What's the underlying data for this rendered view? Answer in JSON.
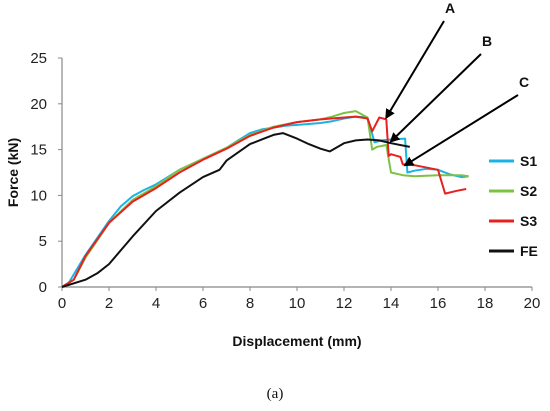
{
  "caption": "(a)",
  "chart_data": {
    "type": "line",
    "title": "",
    "xlabel": "Displacement (mm)",
    "ylabel": "Force (kN)",
    "xlim": [
      0,
      20
    ],
    "ylim": [
      0,
      25
    ],
    "x_ticks": [
      0,
      2,
      4,
      6,
      8,
      10,
      12,
      14,
      16,
      18,
      20
    ],
    "y_ticks": [
      0,
      5,
      10,
      15,
      20,
      25
    ],
    "grid": false,
    "legend_position": "right",
    "series": [
      {
        "name": "S1",
        "color": "#1ab3e6",
        "x": [
          0,
          0.3,
          1,
          2,
          2.5,
          3,
          3.5,
          4,
          5,
          6,
          7,
          7.5,
          8,
          8.5,
          9,
          9.5,
          10,
          10.5,
          11,
          11.5,
          12,
          12.5,
          13,
          13.3,
          13.6,
          14,
          14.6,
          14.7,
          15,
          15.5,
          16,
          16.5,
          17,
          17.3
        ],
        "y": [
          0,
          0.5,
          3.5,
          7.2,
          8.8,
          9.9,
          10.6,
          11.2,
          12.8,
          14,
          15.2,
          16,
          16.8,
          17.2,
          17.4,
          17.6,
          17.7,
          17.8,
          17.9,
          18.1,
          18.4,
          18.6,
          18.5,
          15.8,
          16,
          16.1,
          16.2,
          12.5,
          12.7,
          12.9,
          12.8,
          12.3,
          12,
          12.1
        ]
      },
      {
        "name": "S2",
        "color": "#7dc242",
        "x": [
          0,
          0.5,
          1,
          2,
          3,
          4,
          5,
          6,
          7,
          8,
          9,
          10,
          11,
          11.5,
          12,
          12.5,
          13,
          13.2,
          13.4,
          13.8,
          14,
          14.5,
          15,
          16,
          17,
          17.3
        ],
        "y": [
          0,
          0.8,
          3.2,
          7,
          9.5,
          11,
          12.8,
          14,
          15.2,
          16.6,
          17.5,
          18,
          18.3,
          18.6,
          19,
          19.2,
          18.5,
          15,
          15.3,
          15.5,
          12.5,
          12.2,
          12.1,
          12.2,
          12.2,
          12.1
        ]
      },
      {
        "name": "S3",
        "color": "#e8201e",
        "x": [
          0,
          0.5,
          1,
          2,
          3,
          4,
          5,
          6,
          7,
          8,
          9,
          10,
          11,
          12,
          12.5,
          13,
          13.2,
          13.5,
          13.8,
          13.9,
          14,
          14.4,
          14.5,
          15,
          16,
          16.3,
          16.8,
          17.2
        ],
        "y": [
          0,
          0.8,
          3.4,
          7,
          9.3,
          10.8,
          12.5,
          13.9,
          15.1,
          16.5,
          17.4,
          18,
          18.3,
          18.5,
          18.6,
          18.4,
          17,
          18.5,
          18.3,
          14.3,
          14.5,
          14.2,
          13.4,
          13.3,
          12.8,
          10.2,
          10.5,
          10.7
        ]
      },
      {
        "name": "FE",
        "color": "#111111",
        "x": [
          0,
          1,
          1.5,
          2,
          3,
          4,
          5,
          6,
          6.7,
          7,
          8,
          8.6,
          9,
          9.4,
          10,
          10.5,
          11,
          11.4,
          12,
          12.5,
          13,
          13.5,
          14,
          14.8
        ],
        "y": [
          0,
          0.8,
          1.5,
          2.5,
          5.5,
          8.3,
          10.3,
          12,
          12.8,
          13.8,
          15.6,
          16.2,
          16.6,
          16.8,
          16.2,
          15.6,
          15.1,
          14.8,
          15.7,
          16,
          16.1,
          16,
          15.7,
          15.3
        ]
      }
    ],
    "annotations": [
      {
        "label": "A",
        "target_x": 13.8,
        "target_y": 18.5
      },
      {
        "label": "B",
        "target_x": 14.0,
        "target_y": 15.9
      },
      {
        "label": "C",
        "target_x": 14.6,
        "target_y": 13.3
      }
    ]
  }
}
